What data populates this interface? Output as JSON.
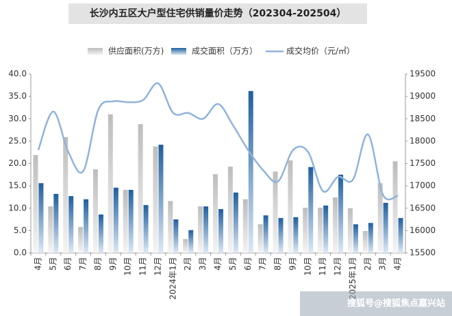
{
  "chart_data": {
    "type": "bar-line",
    "title": "长沙内五区大户型住宅供销量价走势（202304-202504）",
    "watermark": "搜狐号@搜狐焦点嘉兴站",
    "categories": [
      "4月",
      "5月",
      "6月",
      "7月",
      "8月",
      "9月",
      "10月",
      "11月",
      "12月",
      "2024年1月",
      "2月",
      "3月",
      "4月",
      "5月",
      "6月",
      "7月",
      "8月",
      "9月",
      "10月",
      "11月",
      "12月",
      "2025年1月",
      "2月",
      "3月",
      "4月"
    ],
    "series": [
      {
        "name": "供应面积(万方)",
        "type": "bar",
        "color": "#b3b3b3",
        "values": [
          21.9,
          10.4,
          25.9,
          5.8,
          18.7,
          31.0,
          14.1,
          28.8,
          23.8,
          11.6,
          3.1,
          10.4,
          17.6,
          19.3,
          12.0,
          6.4,
          18.2,
          20.7,
          10.1,
          10.1,
          12.4,
          10.0,
          4.9,
          15.6,
          20.5
        ]
      },
      {
        "name": "成交面积（万方）",
        "type": "bar",
        "color": "#2e6da4",
        "values": [
          15.6,
          13.2,
          12.7,
          12.0,
          8.6,
          14.6,
          14.1,
          10.7,
          24.2,
          7.5,
          5.1,
          10.4,
          9.8,
          13.5,
          36.2,
          8.4,
          7.8,
          8.0,
          19.2,
          10.6,
          17.5,
          6.4,
          6.7,
          11.2,
          7.8
        ]
      },
      {
        "name": "成交均价（元/㎡）",
        "type": "line",
        "axis": "y2",
        "color": "#8fb3dc",
        "values": [
          17800,
          18660,
          17760,
          17330,
          18700,
          18890,
          18870,
          18920,
          19290,
          18630,
          18630,
          18500,
          18830,
          18350,
          17800,
          17350,
          17100,
          17800,
          17760,
          16880,
          17200,
          17140,
          18150,
          16800,
          16780
        ]
      }
    ],
    "ylim": [
      0,
      40
    ],
    "yticks": [
      {
        "value": 0,
        "label": "0.0"
      },
      {
        "value": 5,
        "label": "5.0"
      },
      {
        "value": 10,
        "label": "10.0"
      },
      {
        "value": 15,
        "label": "15.0"
      },
      {
        "value": 20,
        "label": "20.0"
      },
      {
        "value": 25,
        "label": "25.0"
      },
      {
        "value": 30,
        "label": "30.0"
      },
      {
        "value": 35,
        "label": "35.0"
      },
      {
        "value": 40,
        "label": "40.0"
      }
    ],
    "y2lim": [
      15500,
      19500
    ],
    "y2ticks": [
      15500,
      16000,
      16500,
      17000,
      17500,
      18000,
      18500,
      19000,
      19500
    ]
  }
}
